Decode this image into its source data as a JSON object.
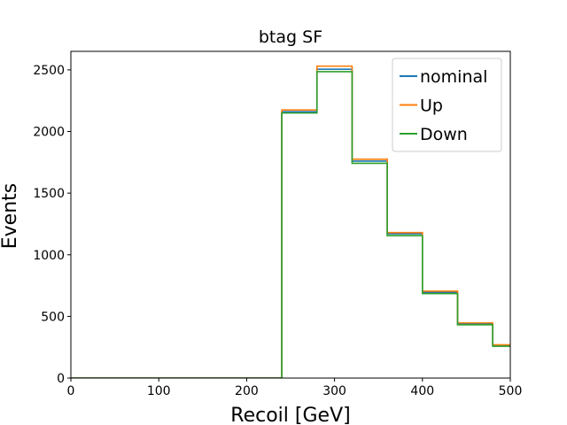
{
  "chart_data": {
    "type": "line",
    "title": "btag SF",
    "xlabel": "Recoil [GeV]",
    "ylabel": "Events",
    "xlim": [
      0,
      500
    ],
    "ylim": [
      0,
      2650
    ],
    "xticks": [
      0,
      100,
      200,
      300,
      400,
      500
    ],
    "yticks": [
      0,
      500,
      1000,
      1500,
      2000,
      2500
    ],
    "bin_edges": [
      0,
      40,
      80,
      120,
      160,
      200,
      240,
      280,
      320,
      360,
      400,
      440,
      480,
      520
    ],
    "grid": false,
    "legend_position": "top-right",
    "series": [
      {
        "name": "nominal",
        "color": "#1f77b4",
        "values": [
          0,
          0,
          0,
          0,
          0,
          0,
          2160,
          2505,
          1760,
          1170,
          695,
          440,
          265
        ]
      },
      {
        "name": "Up",
        "color": "#ff7f0e",
        "values": [
          0,
          0,
          0,
          0,
          0,
          0,
          2175,
          2530,
          1775,
          1180,
          705,
          448,
          270
        ]
      },
      {
        "name": "Down",
        "color": "#2ca02c",
        "values": [
          0,
          0,
          0,
          0,
          0,
          0,
          2150,
          2485,
          1742,
          1155,
          685,
          432,
          258
        ]
      }
    ]
  }
}
